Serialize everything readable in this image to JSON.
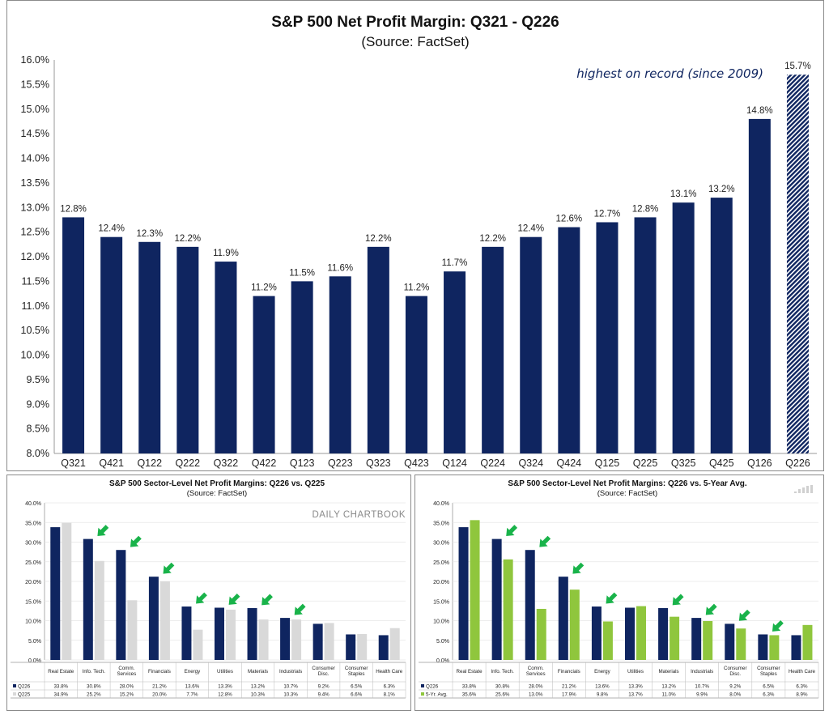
{
  "colors": {
    "navy": "#0f2560",
    "light_gray": "#d9d9d9",
    "lime": "#8fc63d",
    "arrow_green": "#19b34a",
    "grid": "#e6e6e6"
  },
  "icons": [
    "down-left-arrow-icon",
    "bar-chart-watermark-icon"
  ],
  "chart_data": [
    {
      "type": "bar",
      "title": "S&P 500 Net Profit Margin: Q321 - Q226",
      "subtitle": "(Source: FactSet)",
      "annotation": "highest on record (since 2009)",
      "categories": [
        "Q321",
        "Q421",
        "Q122",
        "Q222",
        "Q322",
        "Q422",
        "Q123",
        "Q223",
        "Q323",
        "Q423",
        "Q124",
        "Q224",
        "Q324",
        "Q424",
        "Q125",
        "Q225",
        "Q325",
        "Q425",
        "Q126",
        "Q226"
      ],
      "values": [
        12.8,
        12.4,
        12.3,
        12.2,
        11.9,
        11.2,
        11.5,
        11.6,
        12.2,
        11.2,
        11.7,
        12.2,
        12.4,
        12.6,
        12.7,
        12.8,
        13.1,
        13.2,
        14.8,
        15.7
      ],
      "value_labels": [
        "12.8%",
        "12.4%",
        "12.3%",
        "12.2%",
        "11.9%",
        "11.2%",
        "11.5%",
        "11.6%",
        "12.2%",
        "11.2%",
        "11.7%",
        "12.2%",
        "12.4%",
        "12.6%",
        "12.7%",
        "12.8%",
        "13.1%",
        "13.2%",
        "14.8%",
        "15.7%"
      ],
      "estimate_last": true,
      "ylim": [
        8.0,
        16.0
      ],
      "yticks": [
        "8.0%",
        "8.5%",
        "9.0%",
        "9.5%",
        "10.0%",
        "10.5%",
        "11.0%",
        "11.5%",
        "12.0%",
        "12.5%",
        "13.0%",
        "13.5%",
        "14.0%",
        "14.5%",
        "15.0%",
        "15.5%",
        "16.0%"
      ]
    },
    {
      "type": "bar",
      "title": "S&P 500 Sector-Level Net Profit Margins: Q226 vs. Q225",
      "subtitle": "(Source: FactSet)",
      "watermark": "DAILY CHARTBOOK",
      "categories": [
        "Real Estate",
        "Info. Tech.",
        "Comm. Services",
        "Financials",
        "Energy",
        "Utilities",
        "Materials",
        "Industrials",
        "Consumer Disc.",
        "Consumer Staples",
        "Health Care"
      ],
      "series": [
        {
          "name": "Q226",
          "values": [
            33.8,
            30.8,
            28.0,
            21.2,
            13.6,
            13.3,
            13.2,
            10.7,
            9.2,
            6.5,
            6.3
          ],
          "labels": [
            "33.8%",
            "30.8%",
            "28.0%",
            "21.2%",
            "13.6%",
            "13.3%",
            "13.2%",
            "10.7%",
            "9.2%",
            "6.5%",
            "6.3%"
          ]
        },
        {
          "name": "Q225",
          "values": [
            34.9,
            25.2,
            15.2,
            20.0,
            7.7,
            12.8,
            10.3,
            10.3,
            9.4,
            6.6,
            8.1
          ],
          "labels": [
            "34.9%",
            "25.2%",
            "15.2%",
            "20.0%",
            "7.7%",
            "12.8%",
            "10.3%",
            "10.3%",
            "9.4%",
            "6.6%",
            "8.1%"
          ]
        }
      ],
      "arrows_on": [
        1,
        2,
        3,
        4,
        5,
        6,
        7
      ],
      "ylim": [
        0,
        40
      ],
      "yticks": [
        "0.0%",
        "5.0%",
        "10.0%",
        "15.0%",
        "20.0%",
        "25.0%",
        "30.0%",
        "35.0%",
        "40.0%"
      ]
    },
    {
      "type": "bar",
      "title": "S&P 500 Sector-Level Net Profit Margins: Q226 vs. 5-Year Avg.",
      "subtitle": "(Source: FactSet)",
      "categories": [
        "Real Estate",
        "Info. Tech.",
        "Comm. Services",
        "Financials",
        "Energy",
        "Utilities",
        "Materials",
        "Industrials",
        "Consumer Disc.",
        "Consumer Staples",
        "Health Care"
      ],
      "series": [
        {
          "name": "Q226",
          "values": [
            33.8,
            30.8,
            28.0,
            21.2,
            13.6,
            13.3,
            13.2,
            10.7,
            9.2,
            6.5,
            6.3
          ],
          "labels": [
            "33.8%",
            "30.8%",
            "28.0%",
            "21.2%",
            "13.6%",
            "13.3%",
            "13.2%",
            "10.7%",
            "9.2%",
            "6.5%",
            "6.3%"
          ]
        },
        {
          "name": "5-Yr. Avg.",
          "values": [
            35.6,
            25.6,
            13.0,
            17.9,
            9.8,
            13.7,
            11.0,
            9.9,
            8.0,
            6.3,
            8.9
          ],
          "labels": [
            "35.6%",
            "25.6%",
            "13.0%",
            "17.9%",
            "9.8%",
            "13.7%",
            "11.0%",
            "9.9%",
            "8.0%",
            "6.3%",
            "8.9%"
          ]
        }
      ],
      "arrows_on": [
        1,
        2,
        3,
        4,
        6,
        7,
        8,
        9
      ],
      "ylim": [
        0,
        40
      ],
      "yticks": [
        "0.0%",
        "5.0%",
        "10.0%",
        "15.0%",
        "20.0%",
        "25.0%",
        "30.0%",
        "35.0%",
        "40.0%"
      ]
    }
  ]
}
